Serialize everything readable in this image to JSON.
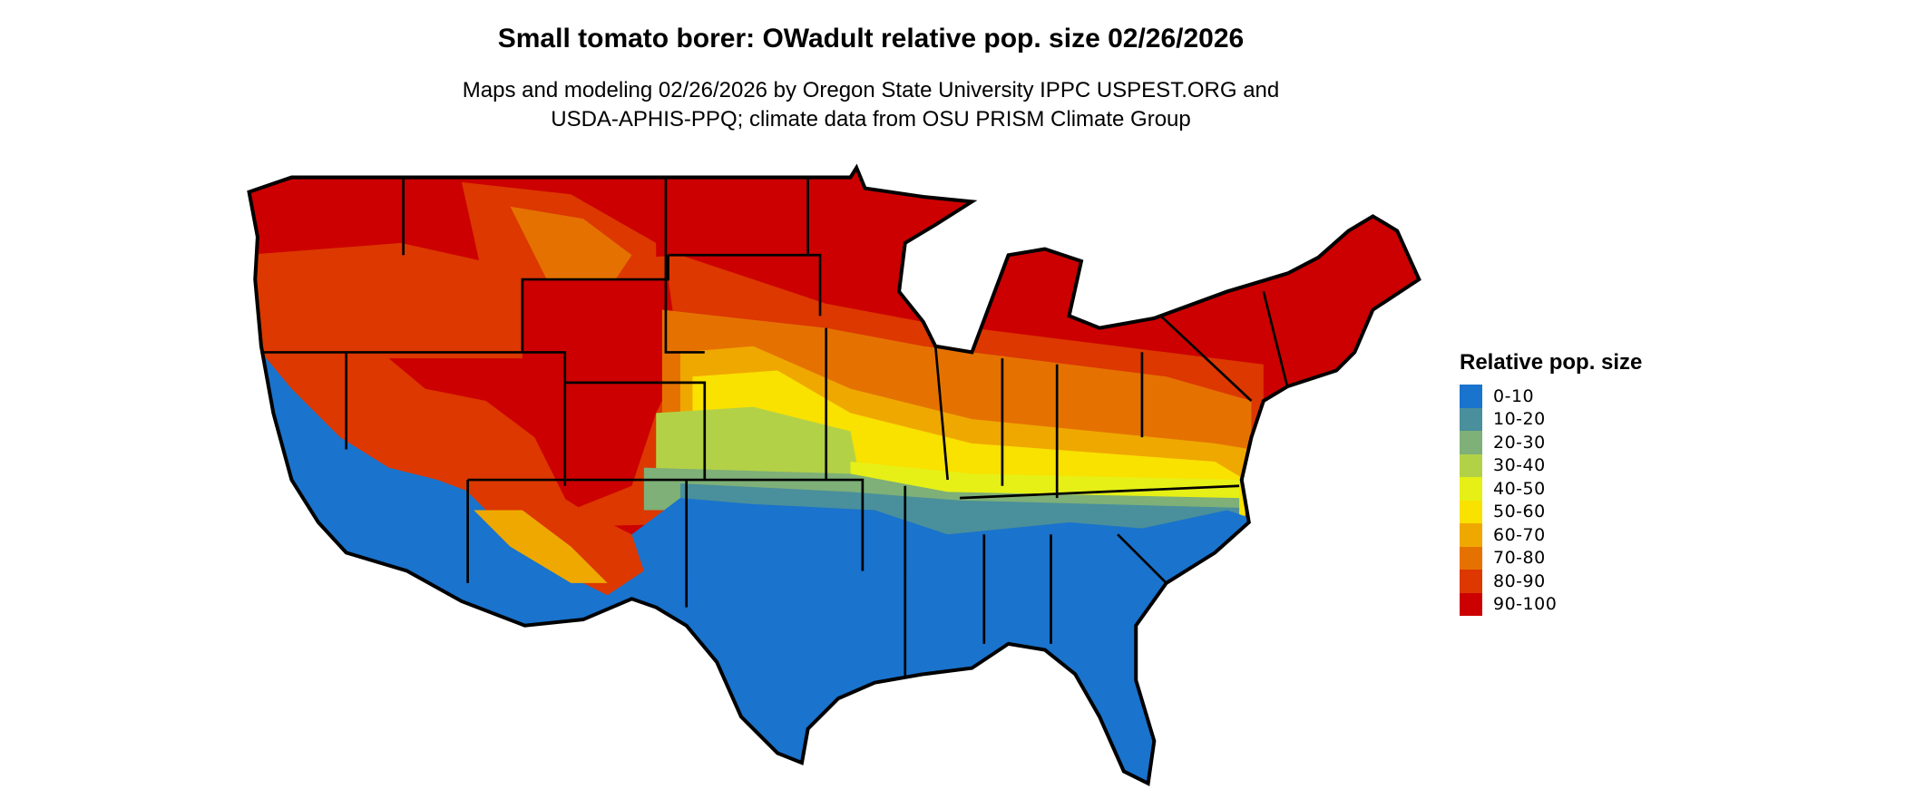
{
  "title": "Small tomato borer: OWadult relative pop. size 02/26/2026",
  "subtitle_line1": "Maps and modeling 02/26/2026 by Oregon State University IPPC USPEST.ORG and",
  "subtitle_line2": "USDA-APHIS-PPQ; climate data from OSU PRISM Climate Group",
  "legend": {
    "title": "Relative pop. size",
    "items": [
      {
        "label": "0-10",
        "color": "#1a73cc"
      },
      {
        "label": "10-20",
        "color": "#4a8f9c"
      },
      {
        "label": "20-30",
        "color": "#7eb077"
      },
      {
        "label": "30-40",
        "color": "#b3d147"
      },
      {
        "label": "40-50",
        "color": "#e6f016"
      },
      {
        "label": "50-60",
        "color": "#f9e100"
      },
      {
        "label": "60-70",
        "color": "#efa800"
      },
      {
        "label": "70-80",
        "color": "#e57200"
      },
      {
        "label": "80-90",
        "color": "#dc3800"
      },
      {
        "label": "90-100",
        "color": "#cc0000"
      }
    ]
  }
}
